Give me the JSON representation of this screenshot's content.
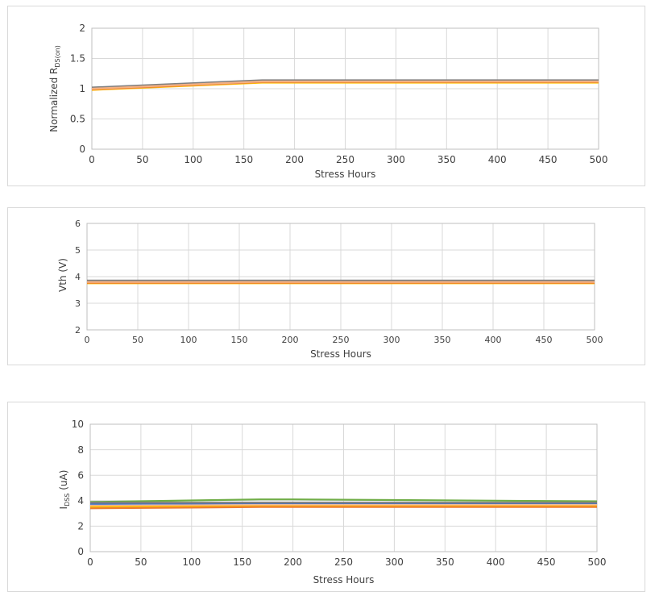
{
  "chart_data": [
    {
      "type": "line",
      "title": "",
      "xlabel": "Stress Hours",
      "ylabel": "Normalized R",
      "ylabel_sub": "DS(on)",
      "xlim": [
        0,
        500
      ],
      "ylim": [
        0,
        2
      ],
      "xticks": [
        0,
        50,
        100,
        150,
        200,
        250,
        300,
        350,
        400,
        450,
        500
      ],
      "yticks": [
        0,
        0.5,
        1,
        1.5,
        2
      ],
      "ytick_labels": [
        "0",
        "0.5",
        "1",
        "1.5",
        "2"
      ],
      "grid": true,
      "x": [
        0,
        168,
        500
      ],
      "series": [
        {
          "color": "#4472c4",
          "values": [
            1.0,
            1.13,
            1.13
          ]
        },
        {
          "color": "#70ad47",
          "values": [
            1.0,
            1.12,
            1.12
          ]
        },
        {
          "color": "#7f7f7f",
          "values": [
            1.02,
            1.14,
            1.14
          ]
        },
        {
          "color": "#ffc000",
          "values": [
            0.98,
            1.1,
            1.1
          ]
        },
        {
          "color": "#ed7d31",
          "values": [
            0.99,
            1.11,
            1.11
          ]
        },
        {
          "color": "#f4b183",
          "values": [
            1.0,
            1.12,
            1.12
          ]
        }
      ]
    },
    {
      "type": "line",
      "title": "",
      "xlabel": "Stress Hours",
      "ylabel": "Vth   (V)",
      "ylabel_sub": "",
      "xlim": [
        0,
        500
      ],
      "ylim": [
        2,
        6
      ],
      "xticks": [
        0,
        50,
        100,
        150,
        200,
        250,
        300,
        350,
        400,
        450,
        500
      ],
      "yticks": [
        2,
        3,
        4,
        5,
        6
      ],
      "ytick_labels": [
        "2",
        "3",
        "4",
        "5",
        "6"
      ],
      "grid": true,
      "x": [
        0,
        168,
        500
      ],
      "series": [
        {
          "color": "#4472c4",
          "values": [
            3.82,
            3.82,
            3.82
          ]
        },
        {
          "color": "#70ad47",
          "values": [
            3.8,
            3.8,
            3.8
          ]
        },
        {
          "color": "#7f7f7f",
          "values": [
            3.85,
            3.85,
            3.85
          ]
        },
        {
          "color": "#ffc000",
          "values": [
            3.75,
            3.75,
            3.75
          ]
        },
        {
          "color": "#ed7d31",
          "values": [
            3.77,
            3.77,
            3.77
          ]
        },
        {
          "color": "#f4b183",
          "values": [
            3.8,
            3.8,
            3.8
          ]
        }
      ]
    },
    {
      "type": "line",
      "title": "",
      "xlabel": "Stress Hours",
      "ylabel": "I",
      "ylabel_sub": "DSS",
      "ylabel_suffix": "  (uA)",
      "xlim": [
        0,
        500
      ],
      "ylim": [
        0,
        10
      ],
      "xticks": [
        0,
        50,
        100,
        150,
        200,
        250,
        300,
        350,
        400,
        450,
        500
      ],
      "yticks": [
        0,
        2,
        4,
        6,
        8,
        10
      ],
      "ytick_labels": [
        "0",
        "2",
        "4",
        "6",
        "8",
        "10"
      ],
      "grid": true,
      "x": [
        0,
        168,
        200,
        500
      ],
      "series": [
        {
          "color": "#70ad47",
          "values": [
            3.9,
            4.1,
            4.1,
            3.95
          ]
        },
        {
          "color": "#4472c4",
          "values": [
            3.75,
            3.8,
            3.8,
            3.8
          ]
        },
        {
          "color": "#7f7f7f",
          "values": [
            3.85,
            3.85,
            3.85,
            3.85
          ]
        },
        {
          "color": "#f4b183",
          "values": [
            3.6,
            3.65,
            3.65,
            3.65
          ]
        },
        {
          "color": "#ffc000",
          "values": [
            3.5,
            3.55,
            3.55,
            3.55
          ]
        },
        {
          "color": "#ed7d31",
          "values": [
            3.4,
            3.5,
            3.5,
            3.5
          ]
        }
      ]
    }
  ]
}
